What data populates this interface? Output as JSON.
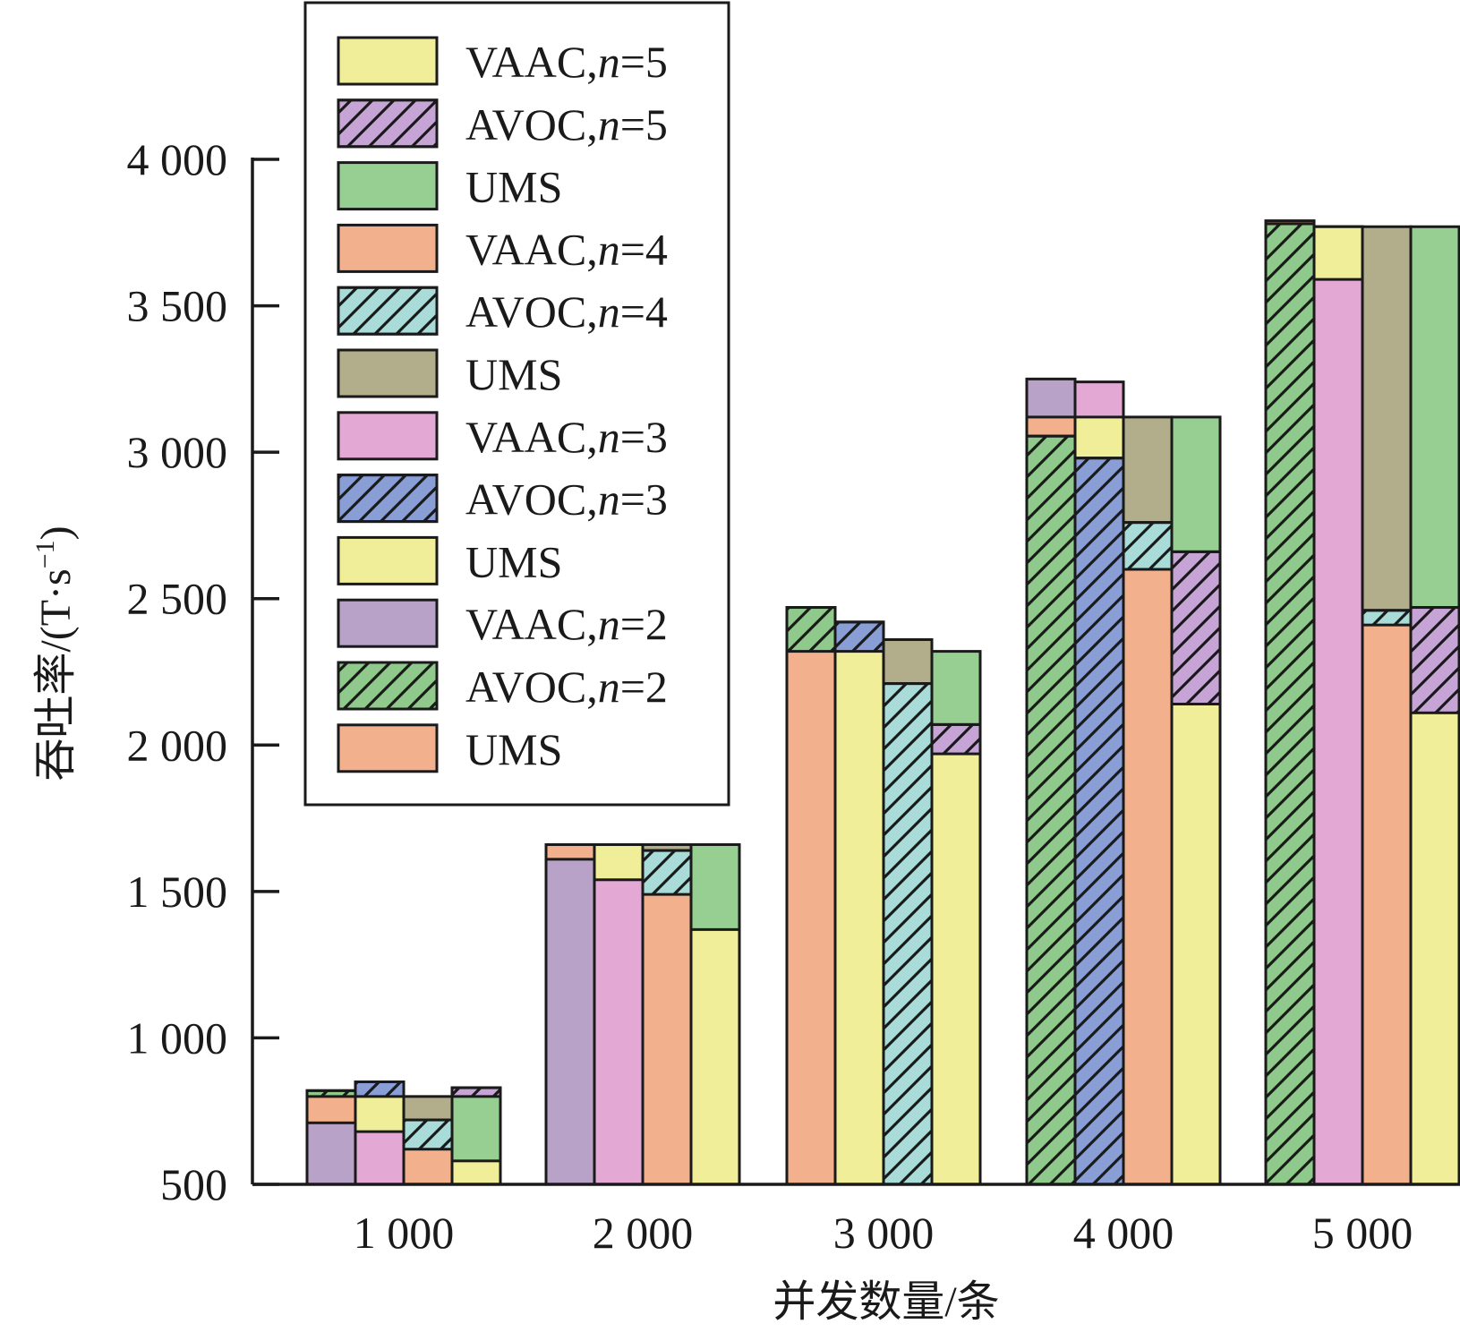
{
  "chart_data": {
    "type": "bar",
    "title": "",
    "xlabel": "并发数量/条",
    "ylabel": "吞吐率/(T·s",
    "ylabel_superscript": "−1",
    "ylabel_close": ")",
    "categories": [
      "1 000",
      "2 000",
      "3 000",
      "4 000",
      "5 000"
    ],
    "ylim": [
      500,
      4000
    ],
    "yticks": [
      500,
      1000,
      1500,
      2000,
      2500,
      3000,
      3500,
      4000
    ],
    "ytick_labels": [
      "500",
      "1 000",
      "1 500",
      "2 000",
      "2 500",
      "3 000",
      "3 500",
      "4 000"
    ],
    "grid": false,
    "legend_position": "top-left",
    "stacked_groups": [
      {
        "name": "n=2",
        "segments": [
          "VAAC,n=2",
          "AVOC,n=2",
          "UMS (n=2)"
        ]
      },
      {
        "name": "n=3",
        "segments": [
          "VAAC,n=3",
          "AVOC,n=3",
          "UMS (n=3)"
        ]
      },
      {
        "name": "n=4",
        "segments": [
          "VAAC,n=4",
          "AVOC,n=4",
          "UMS (n=4)"
        ]
      },
      {
        "name": "n=5",
        "segments": [
          "VAAC,n=5",
          "AVOC,n=5",
          "UMS (n=5)"
        ]
      }
    ],
    "series": [
      {
        "name": "VAAC,n=2",
        "group": 0,
        "color": "#b9a2c8",
        "hatch": false,
        "values": [
          710,
          1610,
          2470,
          3250,
          3790
        ]
      },
      {
        "name": "AVOC,n=2",
        "group": 0,
        "color": "#8fc98c",
        "hatch": true,
        "values": [
          820,
          1660,
          2470,
          3055,
          3780
        ]
      },
      {
        "name": "UMS (n=2)",
        "group": 0,
        "color": "#f2b08c",
        "hatch": false,
        "values": [
          800,
          1660,
          2320,
          3120,
          3790
        ]
      },
      {
        "name": "VAAC,n=3",
        "group": 1,
        "color": "#e3a9d4",
        "hatch": false,
        "values": [
          680,
          1540,
          2420,
          3240,
          3590
        ]
      },
      {
        "name": "AVOC,n=3",
        "group": 1,
        "color": "#8a9ed6",
        "hatch": true,
        "values": [
          850,
          1660,
          2420,
          2980,
          3770
        ]
      },
      {
        "name": "UMS (n=3)",
        "group": 1,
        "color": "#f1ee9a",
        "hatch": false,
        "values": [
          800,
          1660,
          2320,
          3120,
          3770
        ]
      },
      {
        "name": "VAAC,n=4",
        "group": 2,
        "color": "#f2b08c",
        "hatch": false,
        "values": [
          620,
          1490,
          2360,
          2600,
          2410
        ]
      },
      {
        "name": "AVOC,n=4",
        "group": 2,
        "color": "#a9dcd8",
        "hatch": true,
        "values": [
          720,
          1640,
          2210,
          2760,
          2460
        ]
      },
      {
        "name": "UMS (n=4)",
        "group": 2,
        "color": "#b2ae8c",
        "hatch": false,
        "values": [
          800,
          1660,
          2360,
          3120,
          3770
        ]
      },
      {
        "name": "VAAC,n=5",
        "group": 3,
        "color": "#f1ee9a",
        "hatch": false,
        "values": [
          580,
          1370,
          1970,
          2140,
          2110
        ]
      },
      {
        "name": "AVOC,n=5",
        "group": 3,
        "color": "#c6a5d6",
        "hatch": true,
        "values": [
          830,
          1660,
          2070,
          2660,
          2470
        ]
      },
      {
        "name": "UMS (n=5)",
        "group": 3,
        "color": "#96cf91",
        "hatch": false,
        "values": [
          800,
          1660,
          2320,
          3120,
          3770
        ]
      }
    ],
    "legend": [
      {
        "label": "VAAC,",
        "italic": "n",
        "suffix": "=5",
        "color": "#f1ee9a",
        "hatch": false
      },
      {
        "label": "AVOC,",
        "italic": "n",
        "suffix": "=5",
        "color": "#c6a5d6",
        "hatch": true
      },
      {
        "label": "UMS",
        "italic": "",
        "suffix": "",
        "color": "#96cf91",
        "hatch": false
      },
      {
        "label": "VAAC,",
        "italic": "n",
        "suffix": "=4",
        "color": "#f2b08c",
        "hatch": false
      },
      {
        "label": "AVOC,",
        "italic": "n",
        "suffix": "=4",
        "color": "#a9dcd8",
        "hatch": true
      },
      {
        "label": "UMS",
        "italic": "",
        "suffix": "",
        "color": "#b2ae8c",
        "hatch": false
      },
      {
        "label": "VAAC,",
        "italic": "n",
        "suffix": "=3",
        "color": "#e3a9d4",
        "hatch": false
      },
      {
        "label": "AVOC,",
        "italic": "n",
        "suffix": "=3",
        "color": "#8a9ed6",
        "hatch": true
      },
      {
        "label": "UMS",
        "italic": "",
        "suffix": "",
        "color": "#f1ee9a",
        "hatch": false
      },
      {
        "label": "VAAC,",
        "italic": "n",
        "suffix": "=2",
        "color": "#b9a2c8",
        "hatch": false
      },
      {
        "label": "AVOC,",
        "italic": "n",
        "suffix": "=2",
        "color": "#8fc98c",
        "hatch": true
      },
      {
        "label": "UMS",
        "italic": "",
        "suffix": "",
        "color": "#f2b08c",
        "hatch": false
      }
    ]
  }
}
